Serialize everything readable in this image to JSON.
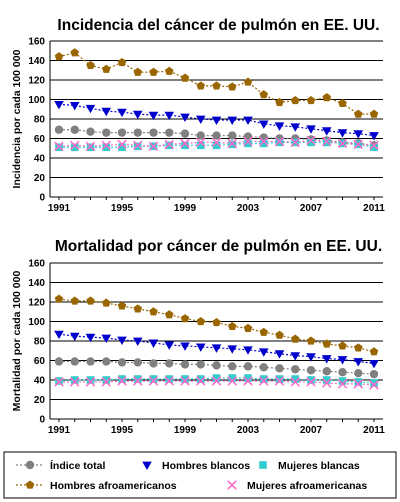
{
  "chart_data": [
    {
      "type": "line",
      "title": "Incidencia del cáncer de pulmón en EE. UU.",
      "ylabel": "Incidencia por cada 100 000",
      "xlabel": "",
      "ylim": [
        0,
        160
      ],
      "yticks": [
        0,
        20,
        40,
        60,
        80,
        100,
        120,
        140,
        160
      ],
      "xticks": [
        1991,
        1995,
        1999,
        2003,
        2007,
        2011
      ],
      "grid": "horizontal",
      "x": [
        1991,
        1992,
        1993,
        1994,
        1995,
        1996,
        1997,
        1998,
        1999,
        2000,
        2001,
        2002,
        2003,
        2004,
        2005,
        2006,
        2007,
        2008,
        2009,
        2010,
        2011
      ],
      "series": [
        {
          "name": "Índice total",
          "color": "#808080",
          "marker": "circle",
          "values": [
            69,
            69,
            67,
            66,
            66,
            66,
            66,
            66,
            65,
            63,
            63,
            63,
            62,
            61,
            60,
            60,
            59,
            58,
            56,
            55,
            53
          ]
        },
        {
          "name": "Hombres blancos",
          "color": "#0000cc",
          "marker": "triangle-down",
          "values": [
            95,
            94,
            91,
            88,
            87,
            85,
            84,
            84,
            82,
            80,
            79,
            79,
            79,
            75,
            73,
            72,
            70,
            68,
            66,
            65,
            63
          ]
        },
        {
          "name": "Mujeres blancas",
          "color": "#33cccc",
          "marker": "square",
          "values": [
            51,
            51,
            51,
            51,
            51,
            52,
            52,
            53,
            53,
            53,
            53,
            54,
            55,
            55,
            56,
            56,
            56,
            56,
            55,
            54,
            51
          ]
        },
        {
          "name": "Hombres afroamericanos",
          "color": "#996600",
          "marker": "pentagon",
          "values": [
            144,
            148,
            135,
            131,
            138,
            128,
            128,
            129,
            122,
            114,
            114,
            113,
            118,
            105,
            97,
            99,
            99,
            102,
            96,
            85,
            85
          ]
        },
        {
          "name": "Mujeres afroamericanas",
          "color": "#ff66cc",
          "marker": "x",
          "values": [
            52,
            53,
            52,
            53,
            54,
            53,
            52,
            54,
            55,
            56,
            56,
            55,
            57,
            57,
            57,
            56,
            58,
            57,
            55,
            54,
            53
          ]
        }
      ]
    },
    {
      "type": "line",
      "title": "Mortalidad por cáncer de pulmón en EE. UU.",
      "ylabel": "Mortalidad por cada 100 000",
      "xlabel": "",
      "ylim": [
        0,
        160
      ],
      "yticks": [
        0,
        20,
        40,
        60,
        80,
        100,
        120,
        140,
        160
      ],
      "xticks": [
        1991,
        1995,
        1999,
        2003,
        2007,
        2011
      ],
      "grid": "horizontal",
      "x": [
        1991,
        1992,
        1993,
        1994,
        1995,
        1996,
        1997,
        1998,
        1999,
        2000,
        2001,
        2002,
        2003,
        2004,
        2005,
        2006,
        2007,
        2008,
        2009,
        2010,
        2011
      ],
      "series": [
        {
          "name": "Índice total",
          "color": "#808080",
          "marker": "circle",
          "values": [
            59,
            59,
            59,
            59,
            58,
            58,
            57,
            57,
            56,
            56,
            55,
            54,
            54,
            53,
            52,
            51,
            50,
            49,
            48,
            47,
            46
          ]
        },
        {
          "name": "Hombres blancos",
          "color": "#0000cc",
          "marker": "triangle-down",
          "values": [
            87,
            85,
            84,
            83,
            81,
            80,
            78,
            76,
            75,
            74,
            73,
            72,
            71,
            69,
            67,
            65,
            64,
            62,
            61,
            59,
            57
          ]
        },
        {
          "name": "Mujeres blancas",
          "color": "#33cccc",
          "marker": "square",
          "values": [
            39,
            40,
            40,
            40,
            41,
            41,
            41,
            41,
            41,
            41,
            42,
            42,
            42,
            41,
            41,
            41,
            40,
            40,
            39,
            38,
            37
          ]
        },
        {
          "name": "Hombres afroamericanos",
          "color": "#996600",
          "marker": "pentagon",
          "values": [
            123,
            121,
            121,
            119,
            116,
            113,
            110,
            107,
            103,
            100,
            99,
            95,
            93,
            89,
            86,
            82,
            80,
            77,
            75,
            73,
            69
          ]
        },
        {
          "name": "Mujeres afroamericanas",
          "color": "#ff66cc",
          "marker": "x",
          "values": [
            38,
            38,
            38,
            38,
            39,
            39,
            39,
            39,
            39,
            39,
            39,
            39,
            39,
            39,
            39,
            38,
            38,
            37,
            36,
            36,
            35
          ]
        }
      ]
    }
  ],
  "legend": {
    "placement": "bottom",
    "items": [
      {
        "label": "Índice total",
        "color": "#808080",
        "marker": "circle"
      },
      {
        "label": "Hombres blancos",
        "color": "#0000cc",
        "marker": "triangle-down"
      },
      {
        "label": "Mujeres blancas",
        "color": "#33cccc",
        "marker": "square"
      },
      {
        "label": "Hombres afroamericanos",
        "color": "#996600",
        "marker": "pentagon"
      },
      {
        "label": "Mujeres afroamericanas",
        "color": "#ff66cc",
        "marker": "x"
      }
    ]
  }
}
